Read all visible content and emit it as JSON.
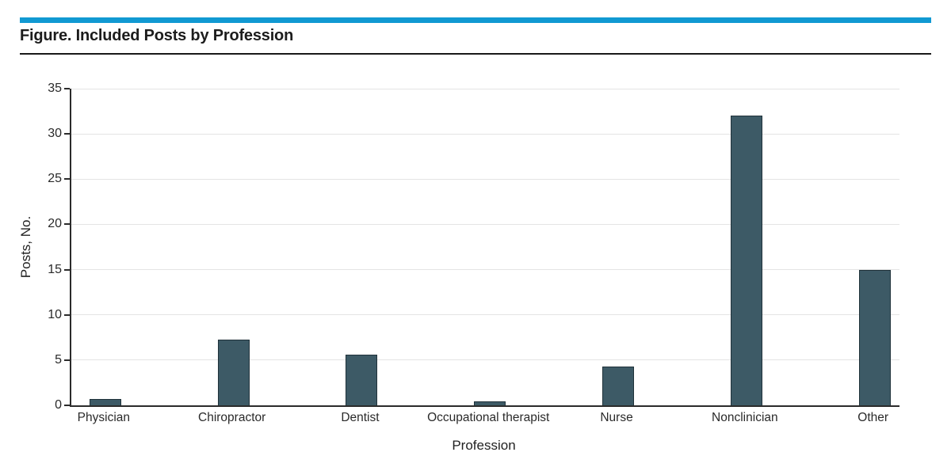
{
  "header": {
    "title": "Figure. Included Posts by Profession"
  },
  "chart_data": {
    "type": "bar",
    "title": "Figure. Included Posts by Profession",
    "categories": [
      "Physician",
      "Chiropractor",
      "Dentist",
      "Occupational therapist",
      "Nurse",
      "Nonclinician",
      "Other"
    ],
    "values": [
      0.7,
      7.3,
      5.6,
      0.4,
      4.3,
      32,
      15
    ],
    "xlabel": "Profession",
    "ylabel": "Posts, No.",
    "ylim": [
      0,
      35
    ],
    "y_ticks": [
      0,
      5,
      10,
      15,
      20,
      25,
      30,
      35
    ],
    "grid": true,
    "legend_position": "none",
    "colors": {
      "bar_fill": "#3d5a66",
      "bar_border": "#20323a",
      "accent_bar": "#1199d2",
      "gridline": "#e4e4e4",
      "axis": "#2b2b2b",
      "text": "#2a2a2a"
    }
  }
}
